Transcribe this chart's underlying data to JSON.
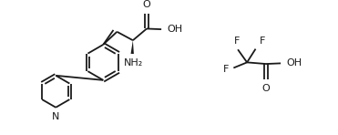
{
  "bg_color": "#ffffff",
  "line_color": "#1a1a1a",
  "line_width": 1.3,
  "font_size": 7.5,
  "figsize": [
    3.71,
    1.48
  ],
  "dpi": 100,
  "xlim": [
    0,
    10
  ],
  "ylim": [
    0,
    4
  ]
}
